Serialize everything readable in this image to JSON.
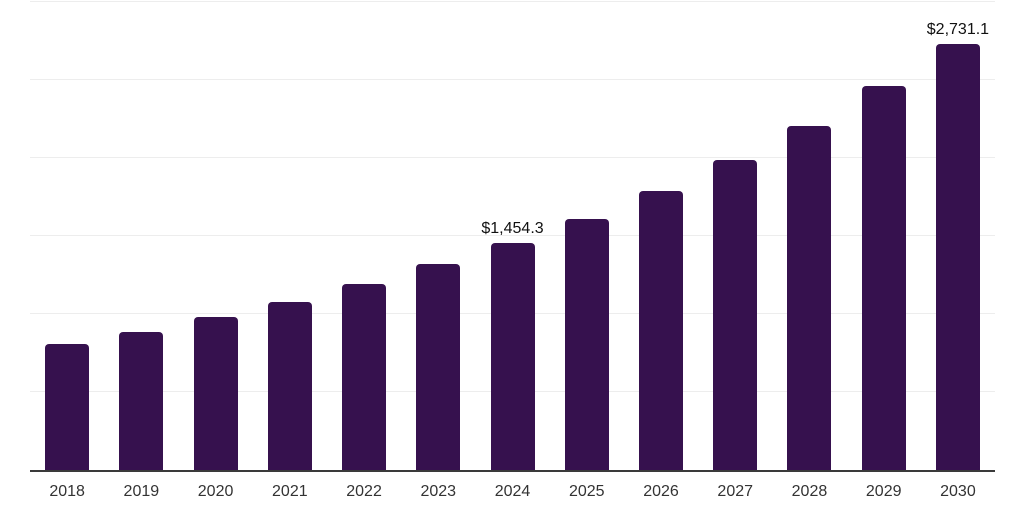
{
  "chart_data": {
    "type": "bar",
    "title": "",
    "xlabel": "",
    "ylabel": "",
    "categories": [
      "2018",
      "2019",
      "2020",
      "2021",
      "2022",
      "2023",
      "2024",
      "2025",
      "2026",
      "2027",
      "2028",
      "2029",
      "2030"
    ],
    "values": [
      810,
      885,
      980,
      1075,
      1190,
      1320,
      1454.3,
      1610,
      1790,
      1985,
      2205,
      2460,
      2731.1
    ],
    "data_labels": [
      {
        "category": "2024",
        "text": "$1,454.3"
      },
      {
        "category": "2030",
        "text": "$2,731.1"
      }
    ],
    "ylim": [
      0,
      3000
    ],
    "gridline_step": 500,
    "grid": true,
    "legend": false
  },
  "style": {
    "background": "#ffffff",
    "bar_color": "#36114E",
    "axis_line_color": "#3a3a3a",
    "gridline_color": "#ededed",
    "tick_label_color": "#333333",
    "data_label_color": "#111111"
  }
}
